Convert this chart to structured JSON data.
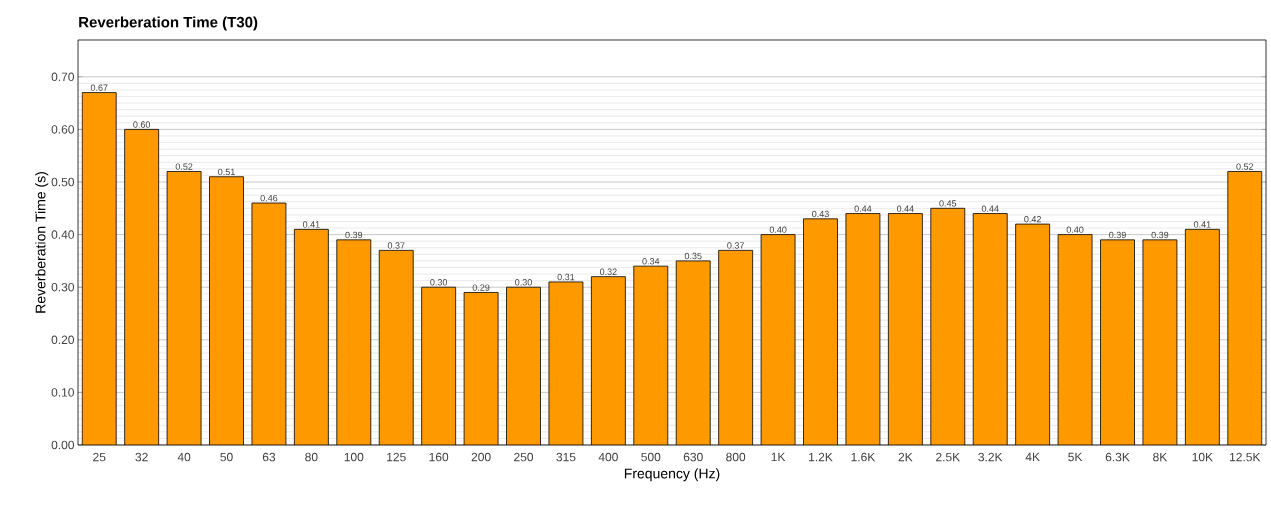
{
  "chart_data": {
    "type": "bar",
    "title": "Reverberation Time (T30)",
    "xlabel": "Frequency (Hz)",
    "ylabel": "Reverberation Time (s)",
    "categories": [
      "25",
      "32",
      "40",
      "50",
      "63",
      "80",
      "100",
      "125",
      "160",
      "200",
      "250",
      "315",
      "400",
      "500",
      "630",
      "800",
      "1K",
      "1.2K",
      "1.6K",
      "2K",
      "2.5K",
      "3.2K",
      "4K",
      "5K",
      "6.3K",
      "8K",
      "10K",
      "12.5K"
    ],
    "values": [
      0.67,
      0.6,
      0.52,
      0.51,
      0.46,
      0.41,
      0.39,
      0.37,
      0.3,
      0.29,
      0.3,
      0.31,
      0.32,
      0.34,
      0.35,
      0.37,
      0.4,
      0.43,
      0.44,
      0.44,
      0.45,
      0.44,
      0.42,
      0.4,
      0.39,
      0.39,
      0.41,
      0.52
    ],
    "value_labels": [
      "0.67",
      "0.60",
      "0.52",
      "0.51",
      "0.46",
      "0.41",
      "0.39",
      "0.37",
      "0.30",
      "0.29",
      "0.30",
      "0.31",
      "0.32",
      "0.34",
      "0.35",
      "0.37",
      "0.40",
      "0.43",
      "0.44",
      "0.44",
      "0.45",
      "0.44",
      "0.42",
      "0.40",
      "0.39",
      "0.39",
      "0.41",
      "0.52"
    ],
    "color": "#ff9900",
    "grid": "y",
    "ylim": [
      0,
      0.77
    ],
    "yticks": [
      {
        "value": 0,
        "label": "0.00"
      },
      {
        "value": 0.1,
        "label": "0.10"
      },
      {
        "value": 0.2,
        "label": "0.20"
      },
      {
        "value": 0.3,
        "label": "0.30"
      },
      {
        "value": 0.4,
        "label": "0.40"
      },
      {
        "value": 0.5,
        "label": "0.50"
      },
      {
        "value": 0.6,
        "label": "0.60"
      },
      {
        "value": 0.7,
        "label": "0.70"
      }
    ]
  }
}
